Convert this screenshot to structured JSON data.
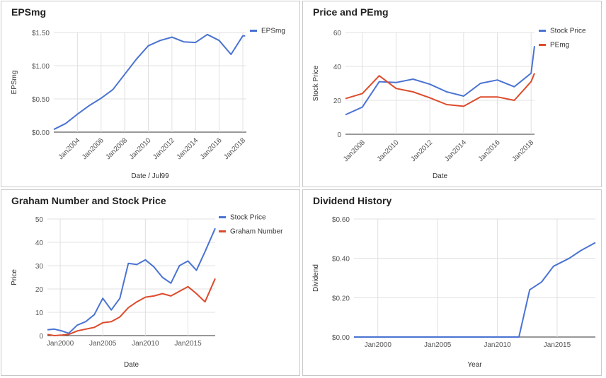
{
  "chart_data": [
    {
      "type": "line",
      "title": "EPSmg",
      "xlabel": "Date / Jul99",
      "ylabel": "EPSmg",
      "x_kind": "date",
      "xlim": [
        2002.0,
        2018.3
      ],
      "ylim": [
        0,
        1.5
      ],
      "y_ticks": [
        "$0.00",
        "$0.50",
        "$1.00",
        "$1.50"
      ],
      "x_ticks": [
        "Jan2004",
        "Jan2006",
        "Jan2008",
        "Jan2010",
        "Jan2012",
        "Jan2014",
        "Jan2016",
        "Jan2018"
      ],
      "legend": "top-right",
      "grid": true,
      "series": [
        {
          "name": "EPSmg",
          "color": "#4a73d2",
          "x": [
            2002.0,
            2003.0,
            2004.0,
            2005.0,
            2006.0,
            2007.0,
            2008.0,
            2009.0,
            2010.0,
            2011.0,
            2012.0,
            2013.0,
            2014.0,
            2015.0,
            2016.0,
            2017.0,
            2018.0,
            2018.2
          ],
          "y": [
            0.04,
            0.13,
            0.27,
            0.4,
            0.51,
            0.64,
            0.87,
            1.1,
            1.3,
            1.38,
            1.43,
            1.36,
            1.35,
            1.47,
            1.38,
            1.17,
            1.45,
            1.45
          ]
        }
      ]
    },
    {
      "type": "line",
      "title": "Price and PEmg",
      "xlabel": "Date",
      "ylabel": "Stock Price",
      "x_kind": "date",
      "xlim": [
        2007.0,
        2018.2
      ],
      "ylim": [
        0,
        60
      ],
      "y_ticks": [
        "0",
        "20",
        "40",
        "60"
      ],
      "x_ticks": [
        "Jan2008",
        "Jan2010",
        "Jan2012",
        "Jan2014",
        "Jan2016",
        "Jan2018"
      ],
      "legend": "top-right",
      "grid": true,
      "series": [
        {
          "name": "Stock Price",
          "color": "#4a73d2",
          "x": [
            2007.0,
            2008.0,
            2009.0,
            2010.0,
            2011.0,
            2012.0,
            2013.0,
            2014.0,
            2015.0,
            2016.0,
            2017.0,
            2018.0,
            2018.2
          ],
          "y": [
            11.5,
            16.0,
            31.0,
            30.5,
            32.5,
            29.5,
            25.0,
            22.5,
            30.0,
            32.0,
            28.0,
            36.0,
            52.0
          ]
        },
        {
          "name": "PEmg",
          "color": "#dc4b2c",
          "x": [
            2007.0,
            2008.0,
            2009.0,
            2010.0,
            2011.0,
            2012.0,
            2013.0,
            2014.0,
            2015.0,
            2016.0,
            2017.0,
            2018.0,
            2018.2
          ],
          "y": [
            21.0,
            24.0,
            34.5,
            27.0,
            25.0,
            21.5,
            17.5,
            16.5,
            22.0,
            22.0,
            20.0,
            31.0,
            36.0
          ]
        }
      ]
    },
    {
      "type": "line",
      "title": "Graham Number and Stock Price",
      "xlabel": "Date",
      "ylabel": "Price",
      "x_kind": "date",
      "xlim": [
        1998.5,
        2018.2
      ],
      "ylim": [
        0,
        50
      ],
      "y_ticks": [
        "0",
        "10",
        "20",
        "30",
        "40",
        "50"
      ],
      "x_ticks": [
        "Jan2000",
        "Jan2005",
        "Jan2010",
        "Jan2015"
      ],
      "legend": "top-right",
      "grid": true,
      "series": [
        {
          "name": "Stock Price",
          "color": "#4a73d2",
          "x": [
            1998.5,
            1999.3,
            2000.2,
            2001.0,
            2002.0,
            2003.0,
            2004.0,
            2005.0,
            2006.0,
            2007.0,
            2008.0,
            2009.0,
            2010.0,
            2011.0,
            2012.0,
            2013.0,
            2014.0,
            2015.0,
            2016.0,
            2017.0,
            2018.2
          ],
          "y": [
            2.5,
            2.8,
            2.0,
            1.0,
            4.5,
            6.0,
            9.0,
            16.0,
            11.0,
            16.0,
            31.0,
            30.5,
            32.5,
            29.5,
            25.0,
            22.5,
            30.0,
            32.0,
            28.0,
            36.0,
            46.0
          ]
        },
        {
          "name": "Graham Number",
          "color": "#dc4b2c",
          "x": [
            1998.5,
            1999.3,
            2000.2,
            2001.0,
            2002.0,
            2003.0,
            2004.0,
            2005.0,
            2006.0,
            2007.0,
            2008.0,
            2009.0,
            2010.0,
            2011.0,
            2012.0,
            2013.0,
            2014.0,
            2015.0,
            2016.0,
            2017.0,
            2018.2
          ],
          "y": [
            0.5,
            0.0,
            0.2,
            0.5,
            2.0,
            2.8,
            3.5,
            5.5,
            6.0,
            8.0,
            12.0,
            14.5,
            16.5,
            17.0,
            18.0,
            17.0,
            19.0,
            21.0,
            18.0,
            14.5,
            24.5
          ]
        }
      ]
    },
    {
      "type": "line",
      "title": "Dividend History",
      "xlabel": "Year",
      "ylabel": "Dividend",
      "x_kind": "date",
      "xlim": [
        1998.0,
        2018.2
      ],
      "ylim": [
        0,
        0.6
      ],
      "y_ticks": [
        "$0.00",
        "$0.20",
        "$0.40",
        "$0.60"
      ],
      "x_ticks": [
        "Jan2000",
        "Jan2005",
        "Jan2010",
        "Jan2015"
      ],
      "legend": "none",
      "grid": true,
      "series": [
        {
          "name": "",
          "color": "#4a73d2",
          "x": [
            1998.0,
            2002.0,
            2006.0,
            2010.0,
            2011.8,
            2012.7,
            2013.7,
            2014.7,
            2016.0,
            2017.0,
            2018.2
          ],
          "y": [
            0,
            0,
            0,
            0,
            0,
            0.24,
            0.28,
            0.36,
            0.4,
            0.44,
            0.48
          ]
        }
      ]
    }
  ]
}
